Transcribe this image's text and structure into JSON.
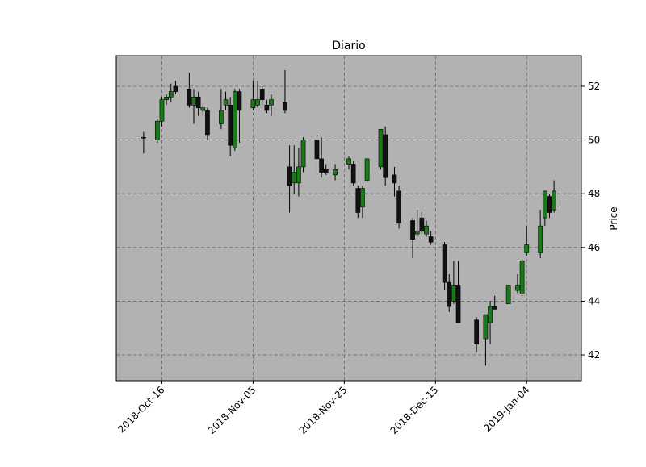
{
  "chart_data": {
    "type": "candlestick",
    "title": "Diario",
    "ylabel": "Price",
    "x": [
      "2018-10-12",
      "2018-10-15",
      "2018-10-16",
      "2018-10-17",
      "2018-10-18",
      "2018-10-19",
      "2018-10-22",
      "2018-10-23",
      "2018-10-24",
      "2018-10-25",
      "2018-10-26",
      "2018-10-29",
      "2018-10-30",
      "2018-10-31",
      "2018-11-01",
      "2018-11-02",
      "2018-11-05",
      "2018-11-06",
      "2018-11-07",
      "2018-11-08",
      "2018-11-09",
      "2018-11-12",
      "2018-11-13",
      "2018-11-14",
      "2018-11-15",
      "2018-11-16",
      "2018-11-19",
      "2018-11-20",
      "2018-11-21",
      "2018-11-23",
      "2018-11-26",
      "2018-11-27",
      "2018-11-28",
      "2018-11-29",
      "2018-11-30",
      "2018-12-03",
      "2018-12-04",
      "2018-12-06",
      "2018-12-07",
      "2018-12-10",
      "2018-12-11",
      "2018-12-12",
      "2018-12-13",
      "2018-12-14",
      "2018-12-17",
      "2018-12-18",
      "2018-12-19",
      "2018-12-20",
      "2018-12-24",
      "2018-12-26",
      "2018-12-27",
      "2018-12-28",
      "2018-12-31",
      "2019-01-02",
      "2019-01-03",
      "2019-01-04",
      "2019-01-07",
      "2019-01-08",
      "2019-01-09",
      "2019-01-10"
    ],
    "open": [
      50.1,
      50.0,
      50.7,
      51.5,
      51.6,
      52.0,
      51.9,
      51.3,
      51.6,
      51.1,
      51.1,
      50.6,
      51.3,
      51.3,
      49.7,
      51.8,
      51.2,
      51.3,
      51.9,
      51.3,
      51.3,
      51.4,
      49.0,
      48.4,
      48.4,
      49.0,
      50.0,
      49.3,
      48.9,
      48.7,
      49.1,
      49.1,
      48.2,
      47.5,
      48.5,
      49.0,
      50.2,
      48.7,
      48.1,
      47.0,
      46.5,
      47.1,
      46.5,
      46.4,
      46.1,
      44.7,
      44.0,
      44.6,
      43.3,
      42.6,
      43.2,
      43.8,
      43.9,
      44.4,
      44.3,
      45.8,
      45.8,
      47.1,
      47.9,
      47.4
    ],
    "high": [
      50.3,
      50.8,
      51.6,
      51.7,
      52.1,
      52.2,
      52.5,
      51.9,
      51.8,
      51.3,
      51.2,
      51.9,
      51.8,
      51.6,
      51.9,
      51.9,
      52.2,
      52.2,
      52.0,
      51.5,
      51.7,
      52.6,
      49.8,
      49.8,
      49.7,
      50.1,
      50.2,
      50.1,
      49.1,
      49.1,
      49.4,
      49.2,
      48.3,
      48.3,
      49.3,
      50.4,
      50.5,
      49.0,
      48.3,
      47.1,
      47.4,
      47.3,
      47.0,
      46.6,
      46.2,
      45.0,
      45.5,
      45.5,
      43.4,
      43.5,
      44.0,
      44.2,
      44.6,
      45.0,
      45.6,
      46.8,
      47.4,
      48.1,
      48.0,
      48.5
    ],
    "low": [
      49.5,
      49.9,
      50.5,
      51.3,
      51.4,
      51.7,
      51.2,
      50.6,
      50.9,
      50.9,
      50.0,
      50.4,
      51.1,
      49.4,
      49.6,
      49.9,
      51.1,
      51.2,
      51.3,
      51.0,
      50.9,
      51.0,
      47.3,
      48.0,
      47.9,
      48.8,
      48.7,
      48.6,
      48.7,
      48.5,
      48.9,
      48.3,
      47.1,
      47.1,
      48.4,
      48.9,
      48.3,
      47.9,
      46.7,
      45.6,
      46.4,
      46.5,
      46.4,
      46.1,
      44.4,
      43.6,
      43.9,
      43.2,
      42.1,
      41.6,
      42.4,
      43.7,
      43.9,
      44.3,
      44.2,
      45.7,
      45.6,
      46.8,
      47.1,
      47.3
    ],
    "close": [
      50.08,
      50.7,
      51.5,
      51.6,
      51.8,
      51.8,
      51.3,
      51.6,
      51.2,
      51.2,
      50.2,
      51.1,
      51.5,
      49.8,
      51.8,
      51.1,
      51.5,
      51.5,
      51.5,
      51.1,
      51.5,
      51.1,
      48.3,
      48.8,
      49.0,
      50.0,
      49.3,
      48.8,
      48.8,
      48.9,
      49.3,
      48.4,
      47.3,
      48.2,
      49.3,
      50.4,
      48.6,
      48.4,
      46.9,
      46.3,
      46.6,
      46.6,
      46.8,
      46.2,
      44.7,
      43.8,
      44.6,
      43.2,
      42.4,
      43.5,
      43.8,
      43.7,
      44.6,
      44.6,
      45.5,
      46.1,
      46.8,
      48.1,
      47.3,
      48.1
    ],
    "up_color": "#1a7a1a",
    "down_color": "#111111",
    "xlim": [
      "2018-10-06",
      "2019-01-16"
    ],
    "xticks": [
      {
        "value": "2018-10-16",
        "label": "2018-Oct-16"
      },
      {
        "value": "2018-11-05",
        "label": "2018-Nov-05"
      },
      {
        "value": "2018-11-25",
        "label": "2018-Nov-25"
      },
      {
        "value": "2018-12-15",
        "label": "2018-Dec-15"
      },
      {
        "value": "2019-01-04",
        "label": "2019-Jan-04"
      }
    ],
    "ylim": [
      41.04,
      53.14
    ],
    "yticks": [
      42,
      44,
      46,
      48,
      50,
      52
    ],
    "grid": true
  }
}
